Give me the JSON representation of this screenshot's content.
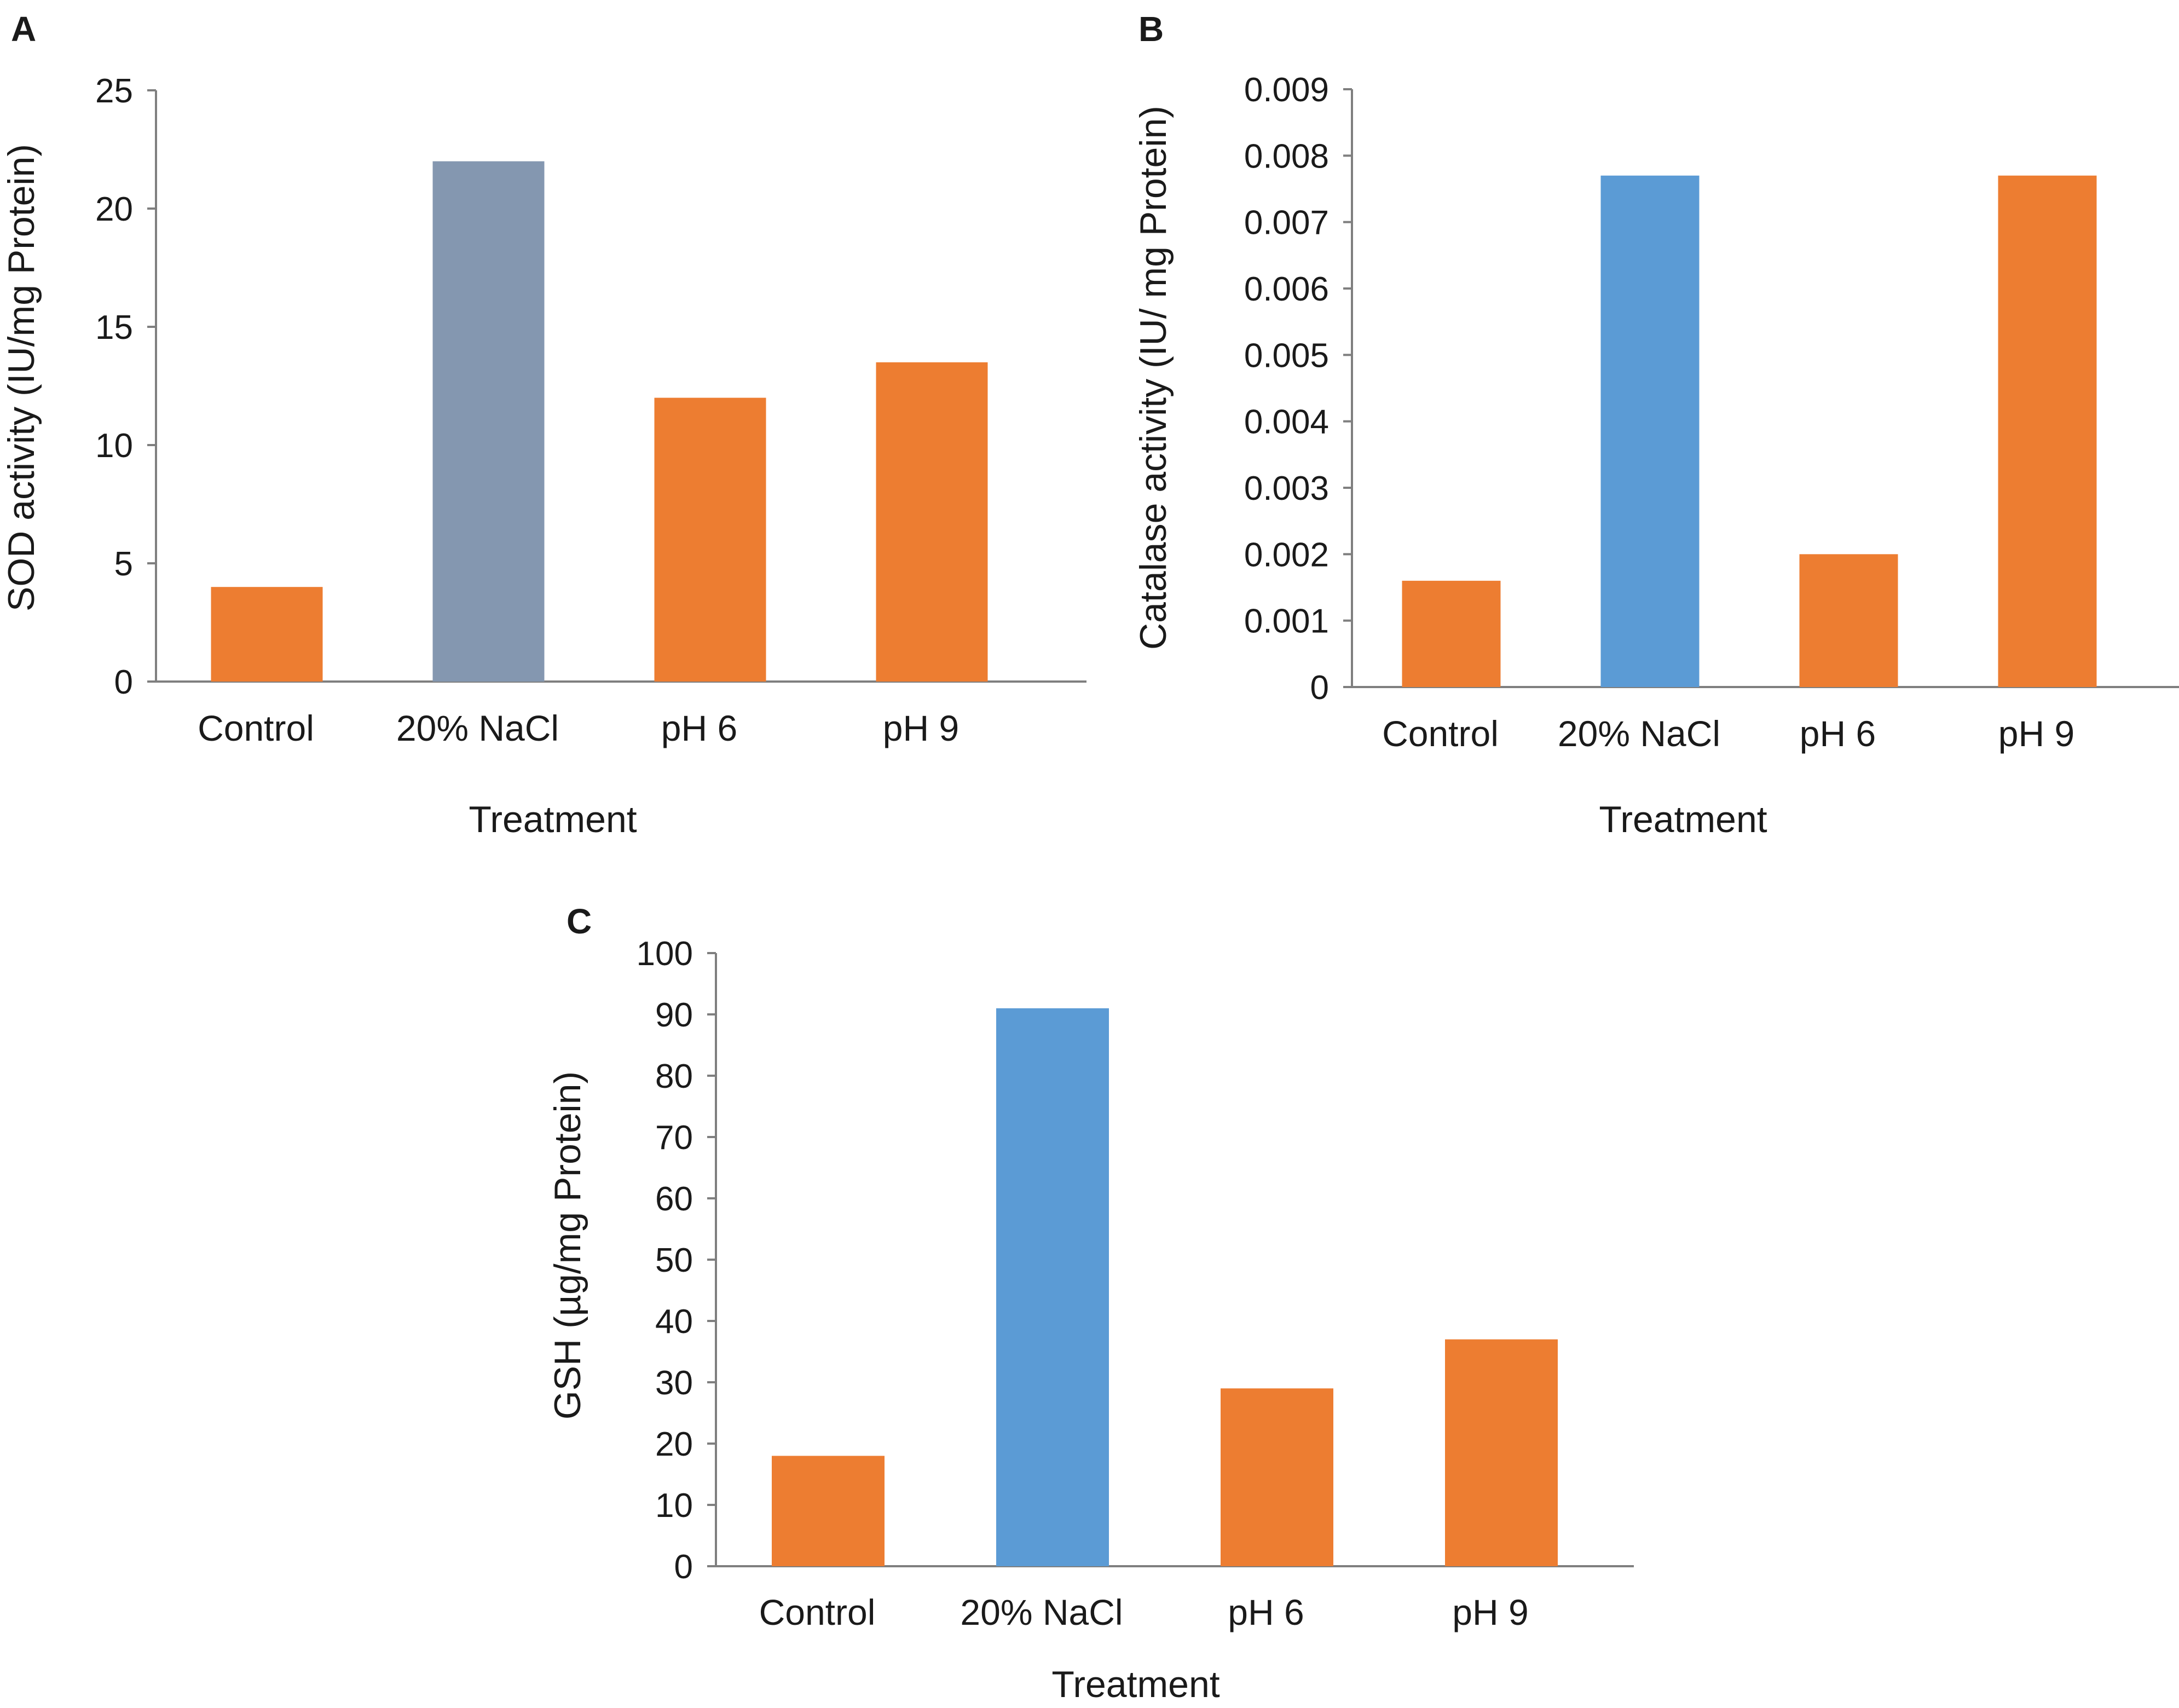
{
  "figure": {
    "panels": [
      {
        "letter": "A",
        "chart_data": {
          "type": "bar",
          "categories": [
            "Control",
            "20% NaCl",
            "pH  6",
            "pH 9"
          ],
          "values": [
            4.0,
            22.0,
            12.0,
            13.5
          ],
          "bar_colors": [
            "#ed7d31",
            "#8497b0",
            "#ed7d31",
            "#ed7d31"
          ],
          "title": "",
          "xlabel": "Treatment",
          "ylabel": "SOD activity (IU/mg Protein)",
          "ylim": [
            0,
            25
          ],
          "yticks": [
            0,
            5,
            10,
            15,
            20,
            25
          ],
          "ytick_labels": [
            "0",
            "5",
            "10",
            "15",
            "20",
            "25"
          ],
          "grid": false
        }
      },
      {
        "letter": "B",
        "chart_data": {
          "type": "bar",
          "categories": [
            "Control",
            "20% NaCl",
            "pH  6",
            "pH 9"
          ],
          "values": [
            0.0016,
            0.0077,
            0.002,
            0.0077
          ],
          "bar_colors": [
            "#ed7d31",
            "#5b9bd5",
            "#ed7d31",
            "#ed7d31"
          ],
          "title": "",
          "xlabel": "Treatment",
          "ylabel": "Catalase activity (IU/ mg Protein)",
          "ylim": [
            0,
            0.009
          ],
          "yticks": [
            0,
            0.001,
            0.002,
            0.003,
            0.004,
            0.005,
            0.006,
            0.007,
            0.008,
            0.009
          ],
          "ytick_labels": [
            "0",
            "0.001",
            "0.002",
            "0.003",
            "0.004",
            "0.005",
            "0.006",
            "0.007",
            "0.008",
            "0.009"
          ],
          "grid": false
        }
      },
      {
        "letter": "C",
        "chart_data": {
          "type": "bar",
          "categories": [
            "Control",
            "20% NaCl",
            "pH  6",
            "pH 9"
          ],
          "values": [
            18,
            91,
            29,
            37
          ],
          "bar_colors": [
            "#ed7d31",
            "#5b9bd5",
            "#ed7d31",
            "#ed7d31"
          ],
          "title": "",
          "xlabel": "Treatment",
          "ylabel": "GSH (µg/mg Protein)",
          "ylim": [
            0,
            100
          ],
          "yticks": [
            0,
            10,
            20,
            30,
            40,
            50,
            60,
            70,
            80,
            90,
            100
          ],
          "ytick_labels": [
            "0",
            "10",
            "20",
            "30",
            "40",
            "50",
            "60",
            "70",
            "80",
            "90",
            "100"
          ],
          "grid": false
        }
      }
    ]
  }
}
